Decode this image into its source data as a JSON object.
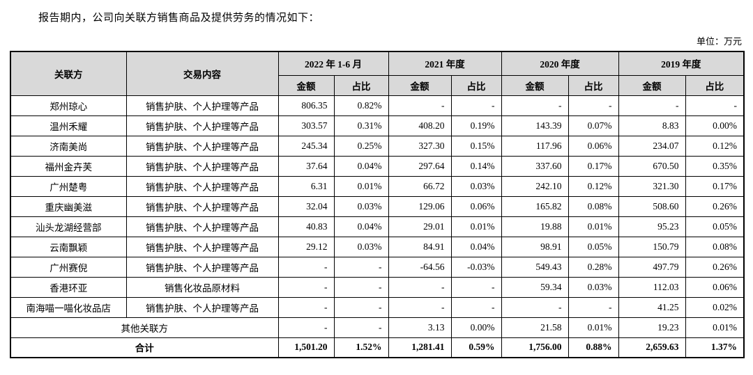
{
  "page": {
    "intro": "报告期内，公司向关联方销售商品及提供劳务的情况如下：",
    "unit": "单位：万元"
  },
  "table": {
    "col_headers": {
      "party": "关联方",
      "content": "交易内容",
      "amount": "金额",
      "ratio": "占比"
    },
    "period_headers": [
      "2022 年 1-6 月",
      "2021 年度",
      "2020 年度",
      "2019 年度"
    ],
    "rows": [
      {
        "party": "郑州琼心",
        "content": "销售护肤、个人护理等产品",
        "values": [
          "806.35",
          "0.82%",
          "-",
          "-",
          "-",
          "-",
          "-",
          "-"
        ]
      },
      {
        "party": "温州禾耀",
        "content": "销售护肤、个人护理等产品",
        "values": [
          "303.57",
          "0.31%",
          "408.20",
          "0.19%",
          "143.39",
          "0.07%",
          "8.83",
          "0.00%"
        ]
      },
      {
        "party": "济南美尚",
        "content": "销售护肤、个人护理等产品",
        "values": [
          "245.34",
          "0.25%",
          "327.30",
          "0.15%",
          "117.96",
          "0.06%",
          "234.07",
          "0.12%"
        ]
      },
      {
        "party": "福州金卉芙",
        "content": "销售护肤、个人护理等产品",
        "values": [
          "37.64",
          "0.04%",
          "297.64",
          "0.14%",
          "337.60",
          "0.17%",
          "670.50",
          "0.35%"
        ]
      },
      {
        "party": "广州楚粤",
        "content": "销售护肤、个人护理等产品",
        "values": [
          "6.31",
          "0.01%",
          "66.72",
          "0.03%",
          "242.10",
          "0.12%",
          "321.30",
          "0.17%"
        ]
      },
      {
        "party": "重庆幽美滋",
        "content": "销售护肤、个人护理等产品",
        "values": [
          "32.04",
          "0.03%",
          "129.06",
          "0.06%",
          "165.82",
          "0.08%",
          "508.60",
          "0.26%"
        ]
      },
      {
        "party": "汕头龙湖经营部",
        "content": "销售护肤、个人护理等产品",
        "values": [
          "40.83",
          "0.04%",
          "29.01",
          "0.01%",
          "19.88",
          "0.01%",
          "95.23",
          "0.05%"
        ]
      },
      {
        "party": "云南飘颖",
        "content": "销售护肤、个人护理等产品",
        "values": [
          "29.12",
          "0.03%",
          "84.91",
          "0.04%",
          "98.91",
          "0.05%",
          "150.79",
          "0.08%"
        ]
      },
      {
        "party": "广州赛倪",
        "content": "销售护肤、个人护理等产品",
        "values": [
          "-",
          "-",
          "-64.56",
          "-0.03%",
          "549.43",
          "0.28%",
          "497.79",
          "0.26%"
        ]
      },
      {
        "party": "香港环亚",
        "content": "销售化妆品原材料",
        "values": [
          "-",
          "-",
          "-",
          "-",
          "59.34",
          "0.03%",
          "112.03",
          "0.06%"
        ]
      },
      {
        "party": "南海喵一喵化妆品店",
        "content": "销售护肤、个人护理等产品",
        "values": [
          "-",
          "-",
          "-",
          "-",
          "-",
          "-",
          "41.25",
          "0.02%"
        ]
      }
    ],
    "other_row": {
      "label": "其他关联方",
      "values": [
        "-",
        "-",
        "3.13",
        "0.00%",
        "21.58",
        "0.01%",
        "19.23",
        "0.01%"
      ]
    },
    "total_row": {
      "label": "合计",
      "values": [
        "1,501.20",
        "1.52%",
        "1,281.41",
        "0.59%",
        "1,756.00",
        "0.88%",
        "2,659.63",
        "1.37%"
      ]
    }
  }
}
